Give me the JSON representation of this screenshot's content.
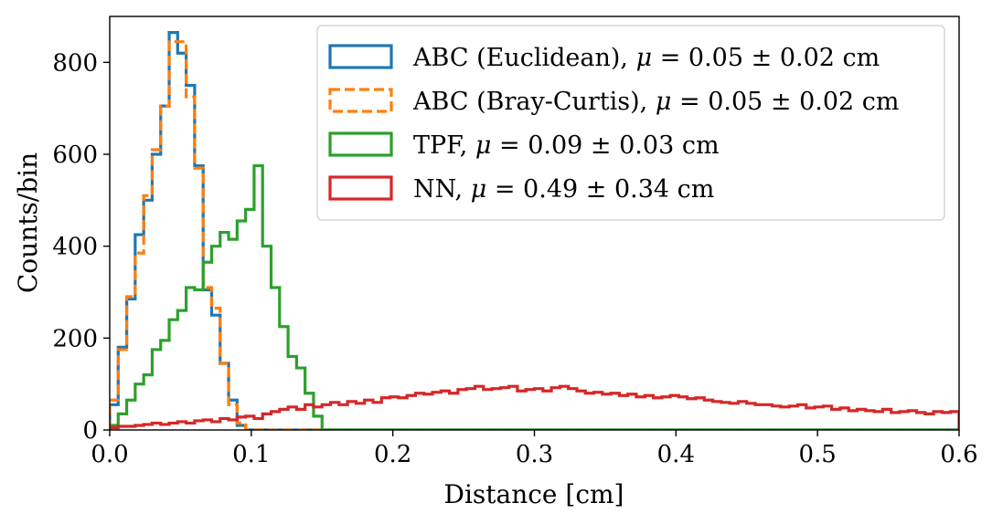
{
  "chart_data": {
    "type": "histogram",
    "xlabel": "Distance [cm]",
    "ylabel": "Counts/bin",
    "xlim": [
      0,
      0.6
    ],
    "ylim": [
      0,
      900
    ],
    "xticks": [
      0.0,
      0.1,
      0.2,
      0.3,
      0.4,
      0.5,
      0.6
    ],
    "xtick_labels": [
      "0.0",
      "0.1",
      "0.2",
      "0.3",
      "0.4",
      "0.5",
      "0.6"
    ],
    "yticks": [
      0,
      200,
      400,
      600,
      800
    ],
    "ytick_labels": [
      "0",
      "200",
      "400",
      "600",
      "800"
    ],
    "bin_width": 0.006,
    "grid": false,
    "legend_position": "top-right",
    "series": [
      {
        "name": "ABC (Euclidean), μ = 0.05 ± 0.02 cm",
        "legend_prefix": "ABC (Euclidean), ",
        "legend_mu": "μ",
        "legend_rest": " = 0.05 ± 0.02 cm",
        "color": "#1f77b4",
        "linestyle": "solid",
        "values": [
          55,
          180,
          285,
          425,
          500,
          600,
          705,
          865,
          820,
          750,
          575,
          305,
          250,
          145,
          65,
          10,
          0,
          0,
          0,
          0,
          0,
          0,
          0,
          0,
          0,
          0,
          0,
          0,
          0,
          0,
          0,
          0,
          0,
          0,
          0,
          0,
          0,
          0,
          0,
          0,
          0,
          0,
          0,
          0,
          0,
          0,
          0,
          0,
          0,
          0,
          0,
          0,
          0,
          0,
          0,
          0,
          0,
          0,
          0,
          0,
          0,
          0,
          0,
          0,
          0,
          0,
          0,
          0,
          0,
          0,
          0,
          0,
          0,
          0,
          0,
          0,
          0,
          0,
          0,
          0,
          0,
          0,
          0,
          0,
          0,
          0,
          0,
          0,
          0,
          0,
          0,
          0,
          0,
          0,
          0,
          0,
          0,
          0,
          0,
          0
        ]
      },
      {
        "name": "ABC (Bray-Curtis), μ = 0.05 ± 0.02 cm",
        "legend_prefix": "ABC (Bray-Curtis), ",
        "legend_mu": "μ",
        "legend_rest": " = 0.05 ± 0.02 cm",
        "color": "#ff7f0e",
        "linestyle": "dashed",
        "values": [
          65,
          175,
          290,
          385,
          510,
          610,
          705,
          845,
          845,
          725,
          570,
          310,
          265,
          145,
          55,
          15,
          0,
          0,
          0,
          0,
          0,
          0,
          0,
          0,
          0,
          0,
          0,
          0,
          0,
          0,
          0,
          0,
          0,
          0,
          0,
          0,
          0,
          0,
          0,
          0,
          0,
          0,
          0,
          0,
          0,
          0,
          0,
          0,
          0,
          0,
          0,
          0,
          0,
          0,
          0,
          0,
          0,
          0,
          0,
          0,
          0,
          0,
          0,
          0,
          0,
          0,
          0,
          0,
          0,
          0,
          0,
          0,
          0,
          0,
          0,
          0,
          0,
          0,
          0,
          0,
          0,
          0,
          0,
          0,
          0,
          0,
          0,
          0,
          0,
          0,
          0,
          0,
          0,
          0,
          0,
          0,
          0,
          0,
          0,
          0
        ]
      },
      {
        "name": "TPF, μ = 0.09 ± 0.03 cm",
        "legend_prefix": "TPF, ",
        "legend_mu": "μ",
        "legend_rest": " = 0.09 ± 0.03 cm",
        "color": "#2ca02c",
        "linestyle": "solid",
        "values": [
          10,
          35,
          65,
          100,
          120,
          175,
          195,
          240,
          260,
          310,
          305,
          365,
          400,
          430,
          415,
          455,
          480,
          575,
          400,
          310,
          225,
          160,
          135,
          80,
          30,
          0,
          0,
          0,
          0,
          0,
          0,
          0,
          0,
          0,
          0,
          0,
          0,
          0,
          0,
          0,
          0,
          0,
          0,
          0,
          0,
          0,
          0,
          0,
          0,
          0,
          0,
          0,
          0,
          0,
          0,
          0,
          0,
          0,
          0,
          0,
          0,
          0,
          0,
          0,
          0,
          0,
          0,
          0,
          0,
          0,
          0,
          0,
          0,
          0,
          0,
          0,
          0,
          0,
          0,
          0,
          0,
          0,
          0,
          0,
          0,
          0,
          0,
          0,
          0,
          0,
          0,
          0,
          0,
          0,
          0,
          0,
          0,
          0,
          0,
          0
        ]
      },
      {
        "name": "NN, μ = 0.49 ± 0.34 cm",
        "legend_prefix": "NN, ",
        "legend_mu": "μ",
        "legend_rest": " = 0.49 ± 0.34 cm",
        "color": "#d62728",
        "linestyle": "solid",
        "values": [
          5,
          8,
          8,
          10,
          12,
          15,
          12,
          15,
          18,
          15,
          20,
          22,
          18,
          25,
          22,
          28,
          30,
          25,
          35,
          40,
          45,
          50,
          45,
          55,
          50,
          55,
          60,
          55,
          62,
          58,
          65,
          60,
          70,
          72,
          70,
          75,
          80,
          78,
          82,
          85,
          80,
          88,
          90,
          95,
          88,
          90,
          92,
          95,
          85,
          88,
          90,
          85,
          92,
          95,
          90,
          85,
          80,
          82,
          78,
          80,
          75,
          78,
          72,
          75,
          70,
          72,
          75,
          72,
          68,
          70,
          65,
          62,
          60,
          58,
          62,
          58,
          55,
          55,
          52,
          50,
          52,
          55,
          48,
          50,
          52,
          45,
          48,
          42,
          45,
          42,
          40,
          45,
          38,
          40,
          42,
          38,
          35,
          40,
          38,
          40
        ]
      }
    ]
  }
}
